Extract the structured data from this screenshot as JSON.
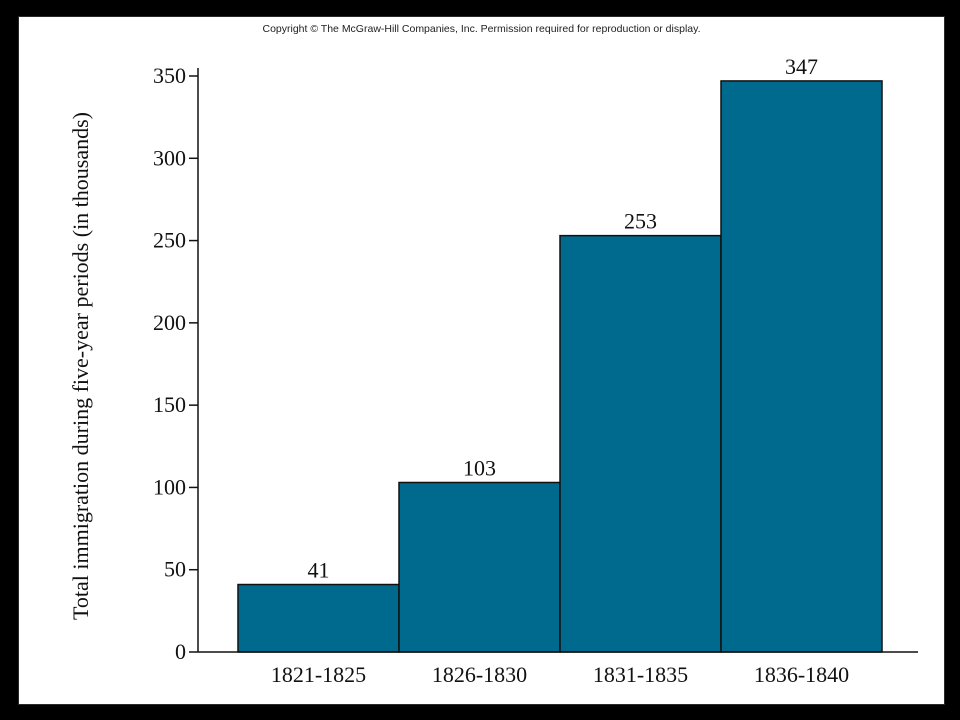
{
  "copyright": "Copyright © The McGraw-Hill Companies, Inc. Permission required for reproduction or display.",
  "colors": {
    "bar": "#006a8e",
    "bar_edge": "#111111",
    "axis": "#111111"
  },
  "chart_data": {
    "type": "bar",
    "title": "",
    "xlabel": "",
    "ylabel": "Total immigration during five-year periods (in thousands)",
    "categories": [
      "1821-1825",
      "1826-1830",
      "1831-1835",
      "1836-1840"
    ],
    "values": [
      41,
      103,
      253,
      347
    ],
    "data_labels": [
      "41",
      "103",
      "253",
      "347"
    ],
    "yticks": [
      0,
      50,
      100,
      150,
      200,
      250,
      300,
      350
    ],
    "ylim": [
      0,
      350
    ],
    "grid": false,
    "legend": "none"
  }
}
